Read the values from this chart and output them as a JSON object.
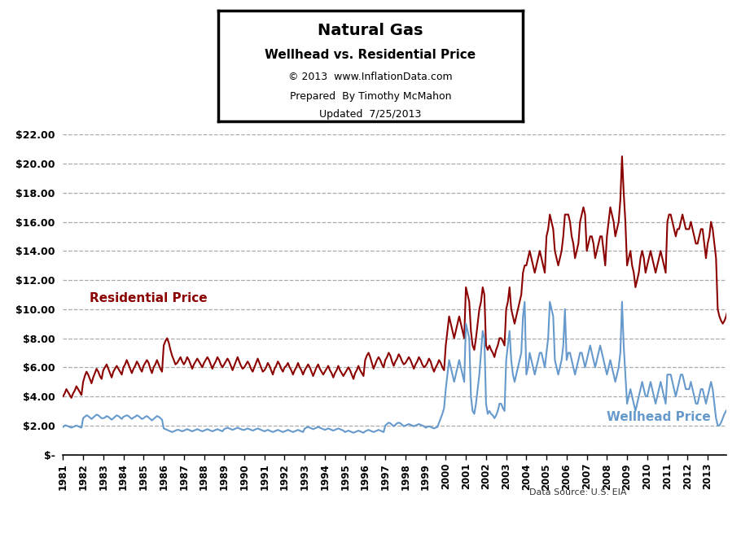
{
  "title_line1": "Natural Gas",
  "title_line2": "Wellhead vs. Residential Price",
  "title_line3": "© 2013  www.InflationData.com",
  "title_line4": "Prepared  By Timothy McMahon",
  "title_line5": "Updated  7/25/2013",
  "data_source": "Data Source: U.S. EIA",
  "residential_label": "Residential Price",
  "wellhead_label": "Wellhead Price",
  "residential_color": "#8B0000",
  "wellhead_color": "#6699CC",
  "background_color": "#FFFFFF",
  "ylim_min": 0,
  "ylim_max": 22,
  "yticks": [
    0,
    2,
    4,
    6,
    8,
    10,
    12,
    14,
    16,
    18,
    20,
    22
  ],
  "ytick_labels": [
    "$-",
    "$2.00",
    "$4.00",
    "$6.00",
    "$8.00",
    "$10.00",
    "$12.00",
    "$14.00",
    "$16.00",
    "$18.00",
    "$20.00",
    "$22.00"
  ],
  "residential_monthly": [
    4.0,
    4.2,
    4.5,
    4.3,
    4.1,
    3.9,
    4.2,
    4.4,
    4.7,
    4.5,
    4.3,
    4.1,
    5.0,
    5.4,
    5.7,
    5.5,
    5.2,
    4.9,
    5.3,
    5.6,
    5.9,
    5.7,
    5.4,
    5.2,
    5.8,
    6.0,
    6.2,
    5.9,
    5.6,
    5.3,
    5.7,
    5.9,
    6.1,
    5.9,
    5.7,
    5.5,
    6.0,
    6.2,
    6.5,
    6.2,
    5.9,
    5.6,
    5.9,
    6.1,
    6.4,
    6.2,
    5.9,
    5.7,
    6.1,
    6.3,
    6.5,
    6.3,
    5.9,
    5.6,
    6.0,
    6.2,
    6.5,
    6.2,
    5.9,
    5.7,
    7.5,
    7.8,
    8.0,
    7.7,
    7.2,
    6.8,
    6.5,
    6.2,
    6.3,
    6.5,
    6.7,
    6.4,
    6.2,
    6.4,
    6.7,
    6.5,
    6.2,
    5.9,
    6.2,
    6.4,
    6.6,
    6.4,
    6.2,
    6.0,
    6.3,
    6.5,
    6.7,
    6.5,
    6.2,
    5.9,
    6.2,
    6.4,
    6.7,
    6.5,
    6.2,
    6.0,
    6.2,
    6.4,
    6.6,
    6.4,
    6.1,
    5.8,
    6.1,
    6.4,
    6.7,
    6.4,
    6.1,
    5.9,
    6.0,
    6.2,
    6.4,
    6.2,
    5.9,
    5.7,
    6.0,
    6.3,
    6.6,
    6.3,
    6.0,
    5.7,
    5.8,
    6.0,
    6.3,
    6.1,
    5.8,
    5.5,
    5.9,
    6.1,
    6.4,
    6.2,
    5.9,
    5.7,
    6.0,
    6.1,
    6.3,
    6.0,
    5.8,
    5.5,
    5.8,
    6.0,
    6.3,
    6.0,
    5.8,
    5.5,
    5.8,
    6.0,
    6.2,
    6.0,
    5.7,
    5.4,
    5.7,
    6.0,
    6.2,
    5.9,
    5.7,
    5.5,
    5.7,
    5.9,
    6.1,
    5.8,
    5.6,
    5.3,
    5.6,
    5.8,
    6.1,
    5.8,
    5.6,
    5.4,
    5.6,
    5.8,
    6.0,
    5.8,
    5.5,
    5.2,
    5.6,
    5.8,
    6.1,
    5.8,
    5.6,
    5.4,
    6.5,
    6.8,
    7.0,
    6.7,
    6.3,
    5.9,
    6.2,
    6.5,
    6.7,
    6.5,
    6.2,
    6.0,
    6.5,
    6.7,
    7.0,
    6.8,
    6.4,
    6.1,
    6.4,
    6.6,
    6.9,
    6.7,
    6.4,
    6.2,
    6.3,
    6.5,
    6.7,
    6.5,
    6.2,
    5.9,
    6.2,
    6.4,
    6.7,
    6.5,
    6.2,
    6.0,
    6.1,
    6.3,
    6.6,
    6.4,
    6.0,
    5.7,
    6.0,
    6.2,
    6.5,
    6.3,
    6.0,
    5.8,
    7.5,
    8.5,
    9.5,
    9.0,
    8.5,
    8.0,
    8.5,
    9.0,
    9.5,
    9.0,
    8.5,
    8.0,
    11.5,
    11.0,
    10.5,
    8.5,
    7.5,
    7.2,
    8.0,
    9.0,
    10.0,
    10.5,
    11.5,
    11.0,
    7.5,
    7.2,
    7.5,
    7.2,
    7.0,
    6.7,
    7.2,
    7.5,
    8.0,
    8.0,
    7.8,
    7.5,
    10.0,
    10.5,
    11.5,
    10.0,
    9.5,
    9.0,
    9.5,
    10.0,
    10.5,
    11.0,
    12.5,
    13.0,
    13.0,
    13.5,
    14.0,
    13.5,
    13.0,
    12.5,
    13.0,
    13.5,
    14.0,
    13.5,
    13.0,
    12.5,
    15.0,
    15.5,
    16.5,
    16.0,
    15.5,
    14.0,
    13.5,
    13.0,
    13.5,
    14.0,
    15.0,
    16.5,
    16.5,
    16.5,
    16.0,
    15.0,
    14.5,
    13.5,
    14.0,
    14.5,
    16.0,
    16.5,
    17.0,
    16.5,
    14.0,
    14.5,
    15.0,
    15.0,
    14.5,
    13.5,
    14.0,
    14.5,
    15.0,
    15.0,
    14.0,
    13.0,
    15.0,
    16.0,
    17.0,
    16.5,
    16.0,
    15.0,
    15.5,
    16.0,
    17.5,
    20.5,
    18.0,
    16.0,
    13.0,
    13.5,
    14.0,
    13.0,
    12.5,
    11.5,
    12.0,
    12.5,
    13.5,
    14.0,
    13.5,
    12.5,
    13.0,
    13.5,
    14.0,
    13.5,
    13.0,
    12.5,
    13.0,
    13.5,
    14.0,
    13.5,
    13.0,
    12.5,
    16.0,
    16.5,
    16.5,
    16.0,
    15.5,
    15.0,
    15.5,
    15.5,
    16.0,
    16.5,
    16.0,
    15.5,
    15.5,
    15.5,
    16.0,
    15.5,
    15.0,
    14.5,
    14.5,
    15.0,
    15.5,
    15.5,
    14.5,
    13.5,
    14.5,
    15.0,
    16.0,
    15.5,
    14.5,
    13.5,
    10.0,
    9.5,
    9.2,
    9.0,
    9.2,
    9.5,
    10.0,
    9.8
  ],
  "wellhead_monthly": [
    1.9,
    2.0,
    2.0,
    1.95,
    1.9,
    1.85,
    1.9,
    1.95,
    2.0,
    1.95,
    1.9,
    1.85,
    2.5,
    2.6,
    2.7,
    2.65,
    2.55,
    2.45,
    2.55,
    2.65,
    2.75,
    2.7,
    2.6,
    2.5,
    2.5,
    2.55,
    2.65,
    2.6,
    2.5,
    2.4,
    2.5,
    2.6,
    2.7,
    2.65,
    2.55,
    2.45,
    2.6,
    2.65,
    2.7,
    2.65,
    2.55,
    2.45,
    2.55,
    2.6,
    2.7,
    2.65,
    2.55,
    2.45,
    2.5,
    2.6,
    2.65,
    2.55,
    2.45,
    2.35,
    2.45,
    2.55,
    2.65,
    2.6,
    2.5,
    2.4,
    1.8,
    1.75,
    1.7,
    1.65,
    1.6,
    1.55,
    1.6,
    1.65,
    1.7,
    1.7,
    1.65,
    1.6,
    1.65,
    1.7,
    1.75,
    1.7,
    1.65,
    1.6,
    1.65,
    1.7,
    1.75,
    1.7,
    1.65,
    1.6,
    1.65,
    1.7,
    1.75,
    1.7,
    1.65,
    1.6,
    1.65,
    1.7,
    1.75,
    1.7,
    1.65,
    1.6,
    1.75,
    1.8,
    1.85,
    1.8,
    1.75,
    1.7,
    1.75,
    1.8,
    1.85,
    1.8,
    1.75,
    1.7,
    1.7,
    1.75,
    1.8,
    1.75,
    1.7,
    1.65,
    1.7,
    1.75,
    1.8,
    1.75,
    1.7,
    1.65,
    1.6,
    1.65,
    1.7,
    1.65,
    1.6,
    1.55,
    1.6,
    1.65,
    1.7,
    1.65,
    1.6,
    1.55,
    1.6,
    1.65,
    1.7,
    1.65,
    1.6,
    1.55,
    1.6,
    1.65,
    1.7,
    1.65,
    1.6,
    1.55,
    1.8,
    1.85,
    1.9,
    1.85,
    1.8,
    1.75,
    1.8,
    1.85,
    1.9,
    1.85,
    1.8,
    1.75,
    1.7,
    1.75,
    1.8,
    1.75,
    1.7,
    1.65,
    1.7,
    1.75,
    1.8,
    1.75,
    1.7,
    1.65,
    1.55,
    1.6,
    1.65,
    1.6,
    1.55,
    1.5,
    1.55,
    1.6,
    1.65,
    1.6,
    1.55,
    1.5,
    1.6,
    1.65,
    1.7,
    1.65,
    1.6,
    1.55,
    1.6,
    1.65,
    1.7,
    1.65,
    1.6,
    1.55,
    2.0,
    2.1,
    2.2,
    2.15,
    2.05,
    1.95,
    2.05,
    2.15,
    2.2,
    2.15,
    2.05,
    1.95,
    2.0,
    2.05,
    2.1,
    2.05,
    2.0,
    1.95,
    2.0,
    2.05,
    2.1,
    2.05,
    2.0,
    1.95,
    1.85,
    1.9,
    1.95,
    1.9,
    1.85,
    1.8,
    1.85,
    1.9,
    2.2,
    2.5,
    2.8,
    3.2,
    4.5,
    5.5,
    6.5,
    6.0,
    5.5,
    5.0,
    5.5,
    6.0,
    6.5,
    6.0,
    5.5,
    5.0,
    9.0,
    8.5,
    8.0,
    4.0,
    3.0,
    2.8,
    3.5,
    4.5,
    5.5,
    7.0,
    8.5,
    8.0,
    3.5,
    2.8,
    3.0,
    2.8,
    2.7,
    2.5,
    2.7,
    3.0,
    3.5,
    3.5,
    3.2,
    3.0,
    6.5,
    7.5,
    8.5,
    6.5,
    5.5,
    5.0,
    5.5,
    6.0,
    6.5,
    7.0,
    9.5,
    10.5,
    5.5,
    6.0,
    7.0,
    6.5,
    6.0,
    5.5,
    6.0,
    6.5,
    7.0,
    7.0,
    6.5,
    6.0,
    7.0,
    8.0,
    10.5,
    10.0,
    9.5,
    6.5,
    6.0,
    5.5,
    6.0,
    6.5,
    7.5,
    10.0,
    6.5,
    7.0,
    7.0,
    6.5,
    6.0,
    5.5,
    6.0,
    6.5,
    7.0,
    7.0,
    6.5,
    6.0,
    6.5,
    7.0,
    7.5,
    7.0,
    6.5,
    6.0,
    6.5,
    7.0,
    7.5,
    7.0,
    6.5,
    6.0,
    5.5,
    6.0,
    6.5,
    6.0,
    5.5,
    5.0,
    5.5,
    6.0,
    7.0,
    10.5,
    7.5,
    5.5,
    3.5,
    4.0,
    4.5,
    4.0,
    3.5,
    3.0,
    3.5,
    4.0,
    4.5,
    5.0,
    4.5,
    4.0,
    4.0,
    4.5,
    5.0,
    4.5,
    4.0,
    3.5,
    4.0,
    4.5,
    5.0,
    4.5,
    4.0,
    3.5,
    5.5,
    5.5,
    5.5,
    5.0,
    4.5,
    4.0,
    4.5,
    5.0,
    5.5,
    5.5,
    5.0,
    4.5,
    4.5,
    4.5,
    5.0,
    4.5,
    4.0,
    3.5,
    3.5,
    4.0,
    4.5,
    4.5,
    4.0,
    3.5,
    4.0,
    4.5,
    5.0,
    4.5,
    3.5,
    2.5,
    2.0,
    2.0,
    2.2,
    2.5,
    2.8,
    3.0,
    3.2,
    3.1
  ]
}
